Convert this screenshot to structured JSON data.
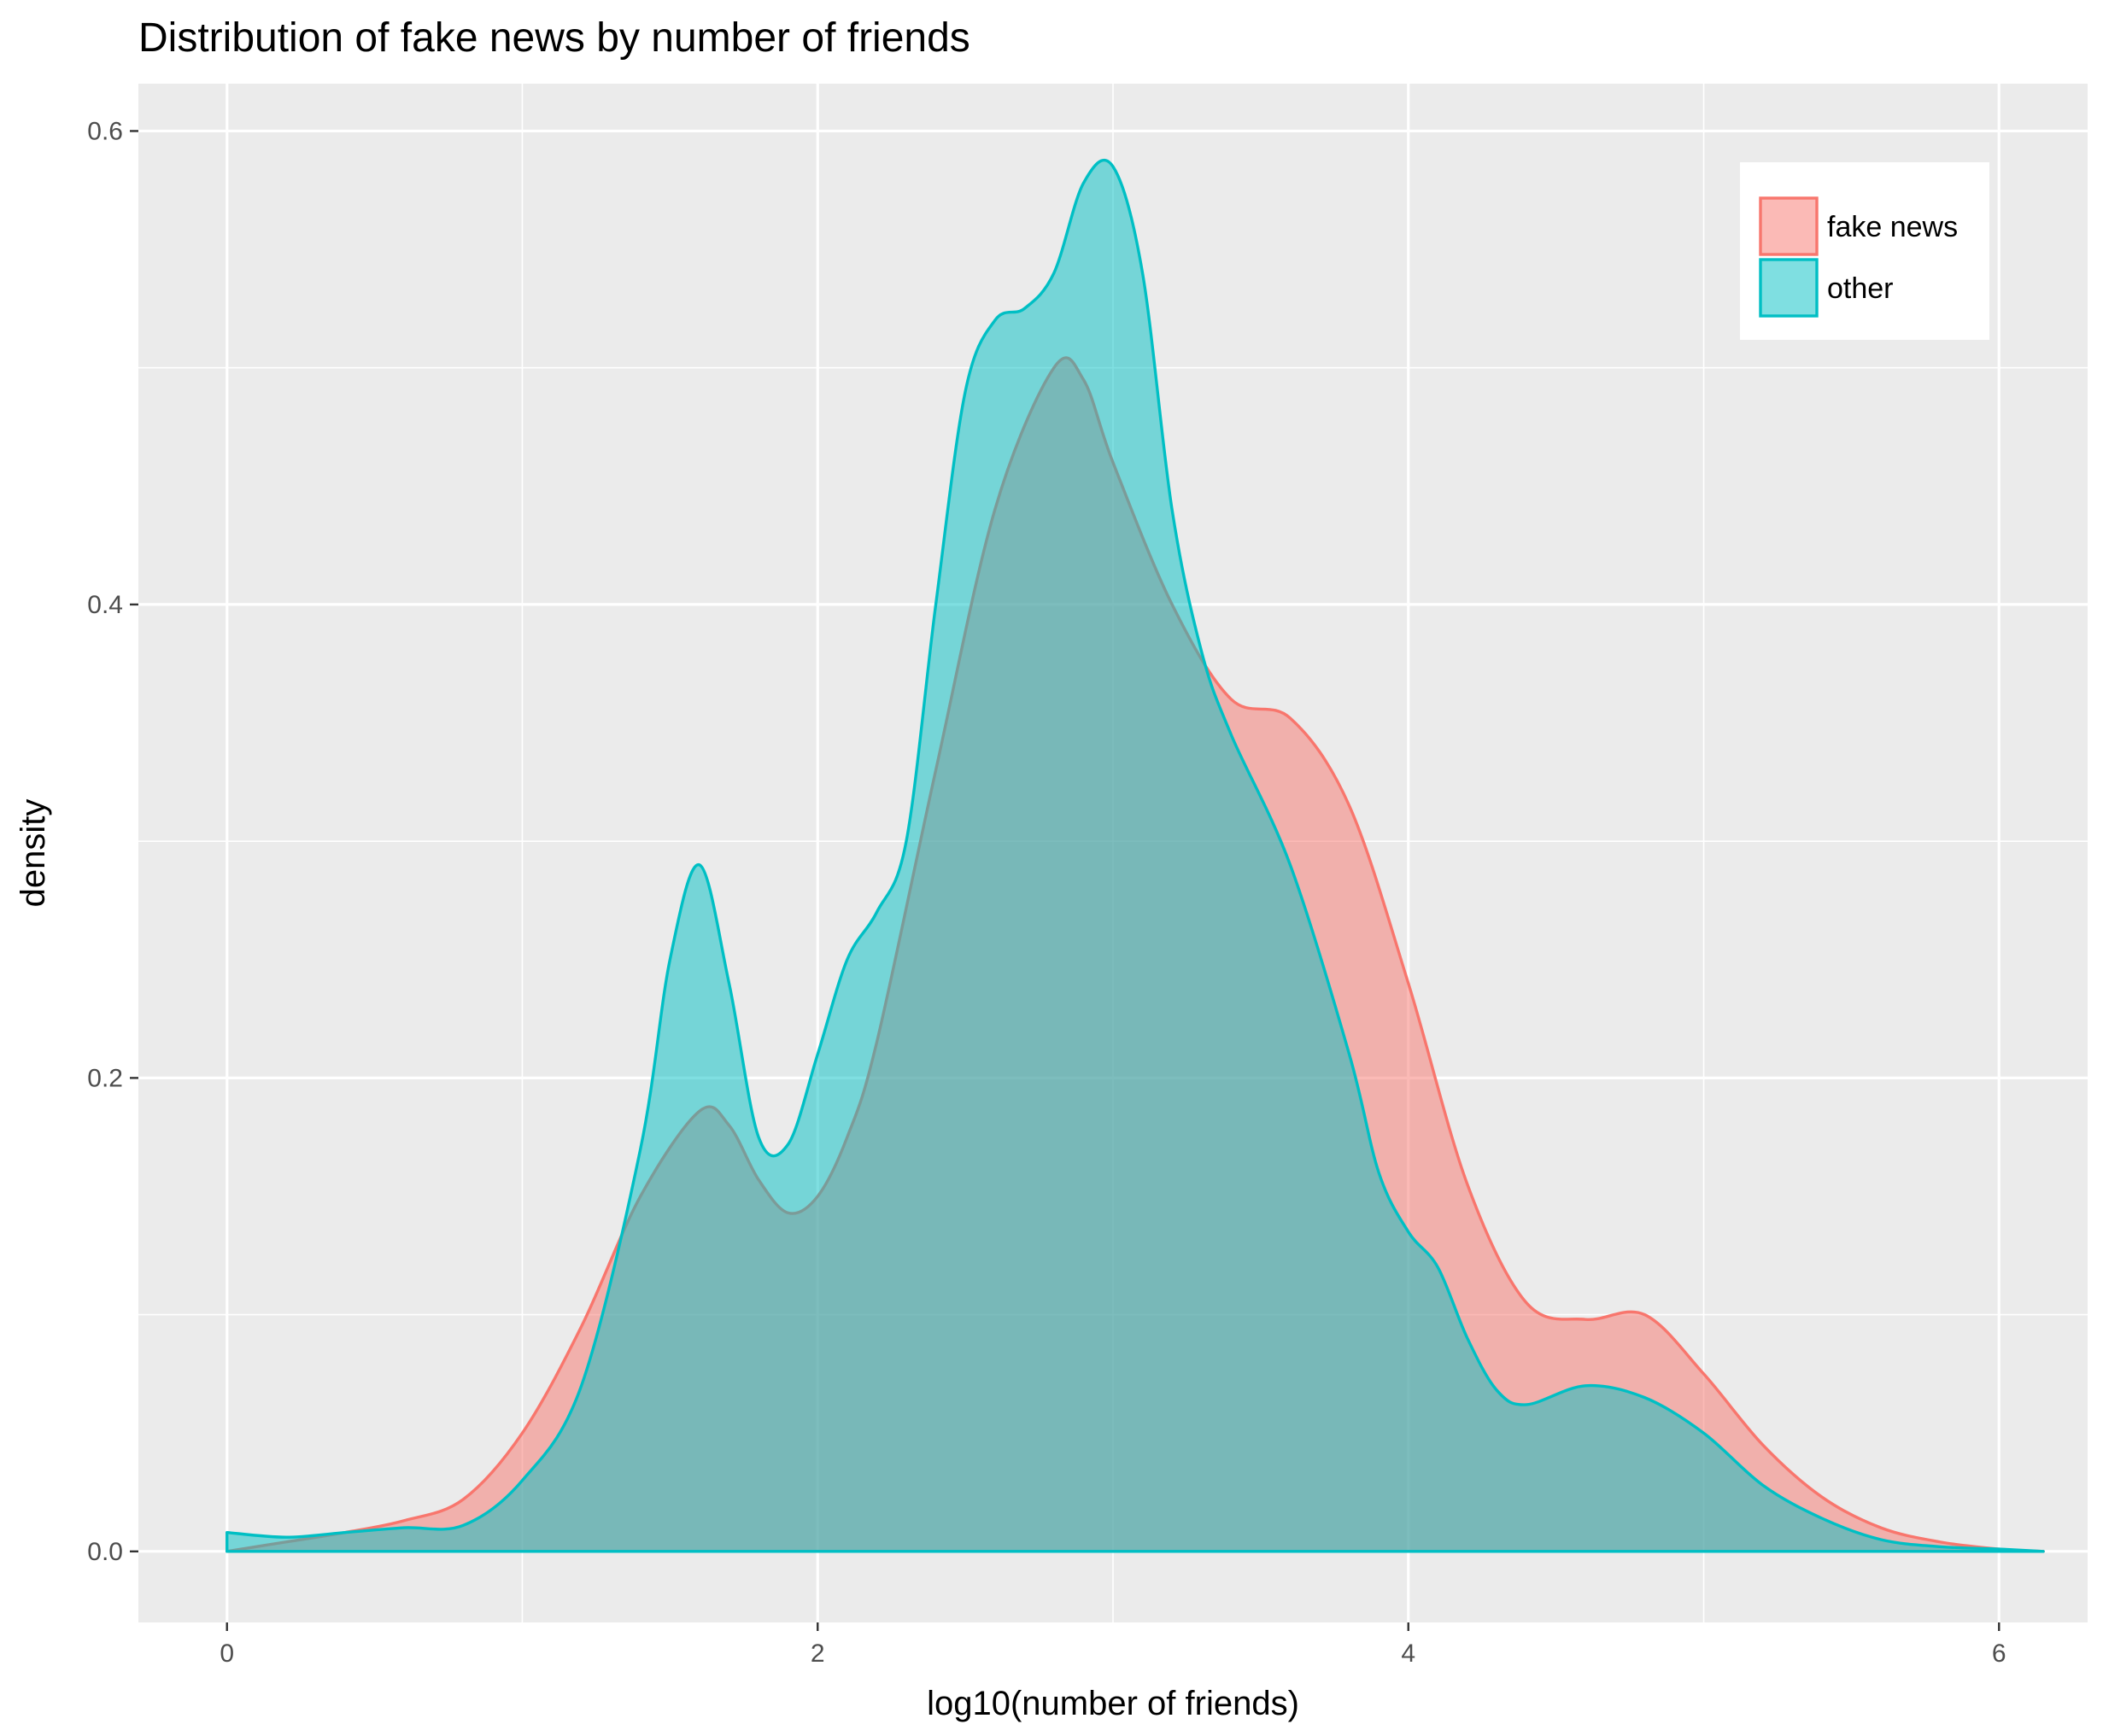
{
  "chart_data": {
    "type": "area",
    "title": "Distribution of fake news by number of friends",
    "xlabel": "log10(number of friends)",
    "ylabel": "density",
    "xlim": [
      -0.3,
      6.3
    ],
    "ylim": [
      -0.03,
      0.62
    ],
    "x_ticks": [
      0,
      2,
      4,
      6
    ],
    "x_tick_labels": [
      "0",
      "2",
      "4",
      "6"
    ],
    "y_ticks": [
      0.0,
      0.2,
      0.4,
      0.6
    ],
    "y_tick_labels": [
      "0.0",
      "0.2",
      "0.4",
      "0.6"
    ],
    "grid": true,
    "legend_position": "top-right",
    "series": [
      {
        "name": "fake news",
        "fill": "#F8766D",
        "stroke": "#F8766D",
        "points": [
          [
            0.0,
            0.0
          ],
          [
            0.2,
            0.004
          ],
          [
            0.4,
            0.008
          ],
          [
            0.6,
            0.013
          ],
          [
            0.8,
            0.022
          ],
          [
            1.0,
            0.05
          ],
          [
            1.2,
            0.095
          ],
          [
            1.4,
            0.15
          ],
          [
            1.6,
            0.186
          ],
          [
            1.7,
            0.18
          ],
          [
            1.8,
            0.157
          ],
          [
            1.9,
            0.143
          ],
          [
            2.0,
            0.15
          ],
          [
            2.1,
            0.175
          ],
          [
            2.2,
            0.215
          ],
          [
            2.4,
            0.33
          ],
          [
            2.6,
            0.44
          ],
          [
            2.8,
            0.5
          ],
          [
            2.9,
            0.495
          ],
          [
            3.0,
            0.46
          ],
          [
            3.2,
            0.4
          ],
          [
            3.4,
            0.36
          ],
          [
            3.6,
            0.352
          ],
          [
            3.8,
            0.315
          ],
          [
            4.0,
            0.24
          ],
          [
            4.2,
            0.155
          ],
          [
            4.4,
            0.105
          ],
          [
            4.6,
            0.098
          ],
          [
            4.8,
            0.1
          ],
          [
            5.0,
            0.075
          ],
          [
            5.2,
            0.045
          ],
          [
            5.4,
            0.023
          ],
          [
            5.6,
            0.01
          ],
          [
            5.8,
            0.004
          ],
          [
            6.0,
            0.001
          ],
          [
            6.15,
            0.0
          ]
        ]
      },
      {
        "name": "other",
        "fill": "#00BFC4",
        "stroke": "#00BFC4",
        "points": [
          [
            0.0,
            0.008
          ],
          [
            0.2,
            0.006
          ],
          [
            0.4,
            0.008
          ],
          [
            0.6,
            0.01
          ],
          [
            0.8,
            0.011
          ],
          [
            1.0,
            0.03
          ],
          [
            1.2,
            0.07
          ],
          [
            1.4,
            0.17
          ],
          [
            1.5,
            0.25
          ],
          [
            1.6,
            0.29
          ],
          [
            1.7,
            0.24
          ],
          [
            1.8,
            0.175
          ],
          [
            1.9,
            0.172
          ],
          [
            2.0,
            0.21
          ],
          [
            2.1,
            0.25
          ],
          [
            2.2,
            0.27
          ],
          [
            2.3,
            0.3
          ],
          [
            2.4,
            0.4
          ],
          [
            2.5,
            0.49
          ],
          [
            2.6,
            0.52
          ],
          [
            2.7,
            0.525
          ],
          [
            2.8,
            0.54
          ],
          [
            2.9,
            0.578
          ],
          [
            3.0,
            0.585
          ],
          [
            3.1,
            0.54
          ],
          [
            3.2,
            0.44
          ],
          [
            3.3,
            0.38
          ],
          [
            3.4,
            0.345
          ],
          [
            3.6,
            0.29
          ],
          [
            3.8,
            0.21
          ],
          [
            3.9,
            0.16
          ],
          [
            4.0,
            0.135
          ],
          [
            4.1,
            0.12
          ],
          [
            4.2,
            0.09
          ],
          [
            4.3,
            0.068
          ],
          [
            4.4,
            0.062
          ],
          [
            4.6,
            0.07
          ],
          [
            4.8,
            0.065
          ],
          [
            5.0,
            0.05
          ],
          [
            5.2,
            0.028
          ],
          [
            5.4,
            0.014
          ],
          [
            5.6,
            0.005
          ],
          [
            5.8,
            0.002
          ],
          [
            6.0,
            0.001
          ],
          [
            6.15,
            0.0
          ]
        ]
      }
    ]
  }
}
